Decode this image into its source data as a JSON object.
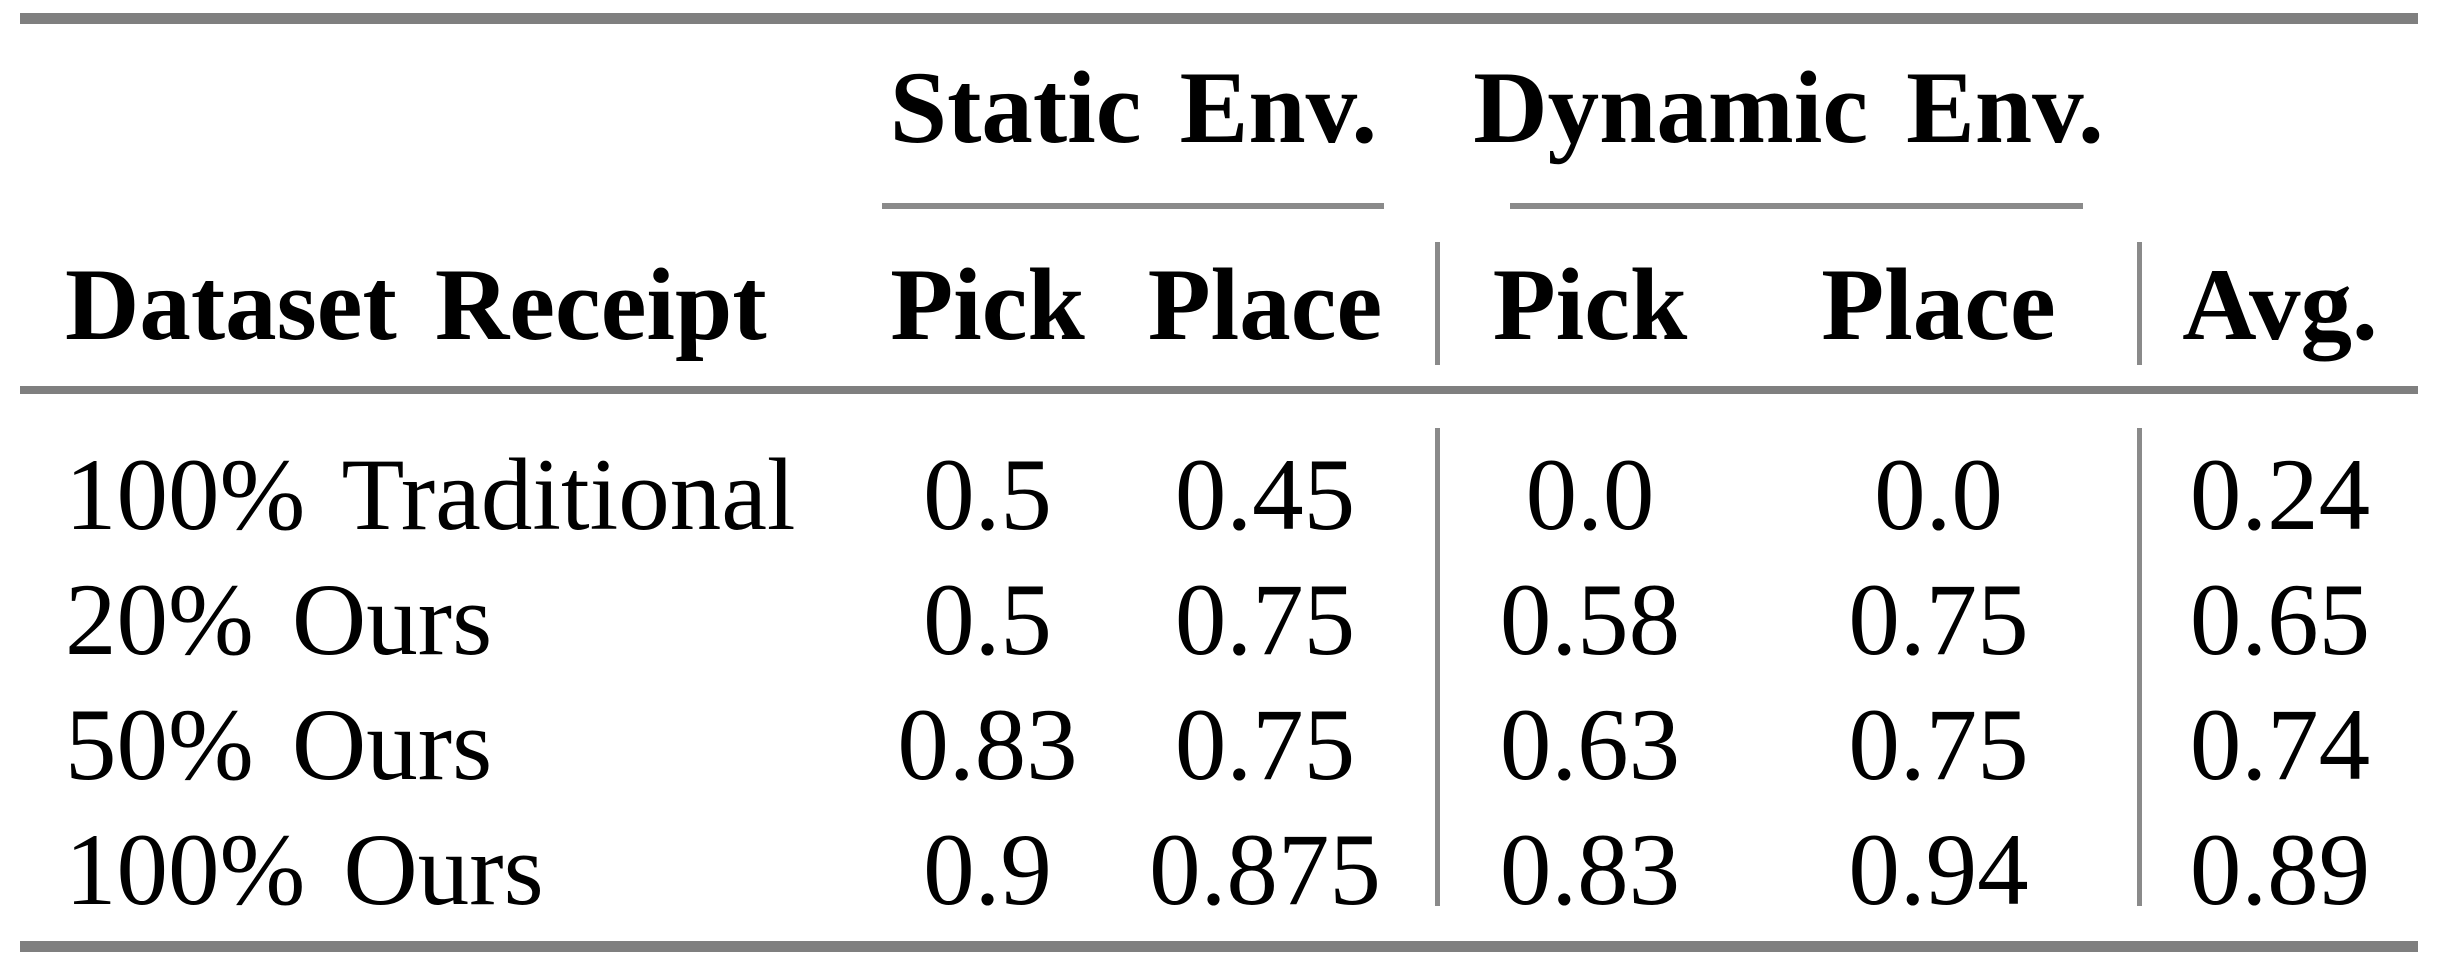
{
  "table": {
    "col_groups": [
      {
        "label": "Static Env."
      },
      {
        "label": "Dynamic Env."
      }
    ],
    "headers": {
      "dataset": "Dataset Receipt",
      "static_pick": "Pick",
      "static_place": "Place",
      "dynamic_pick": "Pick",
      "dynamic_place": "Place",
      "avg": "Avg."
    },
    "rows": [
      {
        "dataset": "100% Traditional",
        "static_pick": "0.5",
        "static_place": "0.45",
        "dynamic_pick": "0.0",
        "dynamic_place": "0.0",
        "avg": "0.24"
      },
      {
        "dataset": "20% Ours",
        "static_pick": "0.5",
        "static_place": "0.75",
        "dynamic_pick": "0.58",
        "dynamic_place": "0.75",
        "avg": "0.65"
      },
      {
        "dataset": "50% Ours",
        "static_pick": "0.83",
        "static_place": "0.75",
        "dynamic_pick": "0.63",
        "dynamic_place": "0.75",
        "avg": "0.74"
      },
      {
        "dataset": "100% Ours",
        "static_pick": "0.9",
        "static_place": "0.875",
        "dynamic_pick": "0.83",
        "dynamic_place": "0.94",
        "avg": "0.89"
      }
    ],
    "colors": {
      "rule": "#7f7f7f",
      "light_rule": "#8a8a8a",
      "text": "#000000",
      "background": "#ffffff"
    }
  }
}
